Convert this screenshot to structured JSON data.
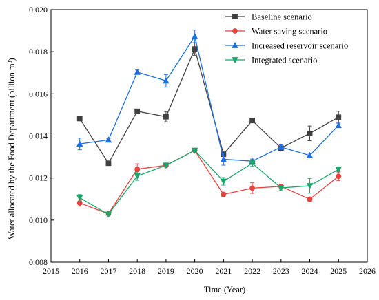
{
  "chart_data": {
    "type": "line",
    "xlabel": "Time (Year)",
    "ylabel_main": "Water allocated by the Food Department (billion m",
    "ylabel_sup": "3",
    "ylabel_close": ")",
    "xlim": [
      2015,
      2026
    ],
    "ylim": [
      0.008,
      0.02
    ],
    "x_ticks": [
      "2015",
      "2016",
      "2017",
      "2018",
      "2019",
      "2020",
      "2021",
      "2022",
      "2023",
      "2024",
      "2025",
      "2026"
    ],
    "y_ticks": [
      "0.008",
      "0.010",
      "0.012",
      "0.014",
      "0.016",
      "0.018",
      "0.020"
    ],
    "grid": false,
    "legend_position": "top-right",
    "x": [
      2016,
      2017,
      2018,
      2019,
      2020,
      2021,
      2022,
      2023,
      2024,
      2025
    ],
    "series": [
      {
        "name": "Baseline scenario",
        "color": "#404040",
        "marker": "square",
        "values": [
          0.01482,
          0.0127,
          0.01517,
          0.01491,
          0.01813,
          0.01313,
          0.01473,
          0.01342,
          0.01412,
          0.01489
        ],
        "errors": [
          5e-05,
          5e-05,
          0.0001,
          0.00025,
          0.0003,
          0.0001,
          8e-05,
          5e-05,
          0.00035,
          0.00028
        ]
      },
      {
        "name": "Water saving scenario",
        "color": "#e8413e",
        "marker": "circle",
        "values": [
          0.01081,
          0.0103,
          0.01242,
          0.0126,
          0.01331,
          0.01122,
          0.01152,
          0.0116,
          0.01099,
          0.01208
        ],
        "errors": [
          0.00015,
          5e-05,
          0.00025,
          5e-05,
          5e-05,
          0.0001,
          0.00025,
          0.0001,
          0.0001,
          0.0002
        ]
      },
      {
        "name": "Increased reservoir scenario",
        "color": "#1f6fe0",
        "marker": "triangle-up",
        "values": [
          0.01362,
          0.01381,
          0.01703,
          0.01662,
          0.01873,
          0.01289,
          0.0128,
          0.01347,
          0.01307,
          0.0145
        ],
        "errors": [
          0.00028,
          5e-05,
          0.0001,
          0.0003,
          0.0003,
          0.00028,
          0.0001,
          0.0001,
          0.0001,
          0.0001
        ]
      },
      {
        "name": "Integrated scenario",
        "color": "#1aa56a",
        "marker": "triangle-down",
        "values": [
          0.01106,
          0.01027,
          0.01209,
          0.0126,
          0.01331,
          0.01184,
          0.0127,
          0.01153,
          0.01163,
          0.01241
        ],
        "errors": [
          0.00015,
          5e-05,
          0.0002,
          5e-05,
          5e-05,
          0.00018,
          0.00015,
          0.0001,
          0.00035,
          0.0001
        ]
      }
    ]
  }
}
